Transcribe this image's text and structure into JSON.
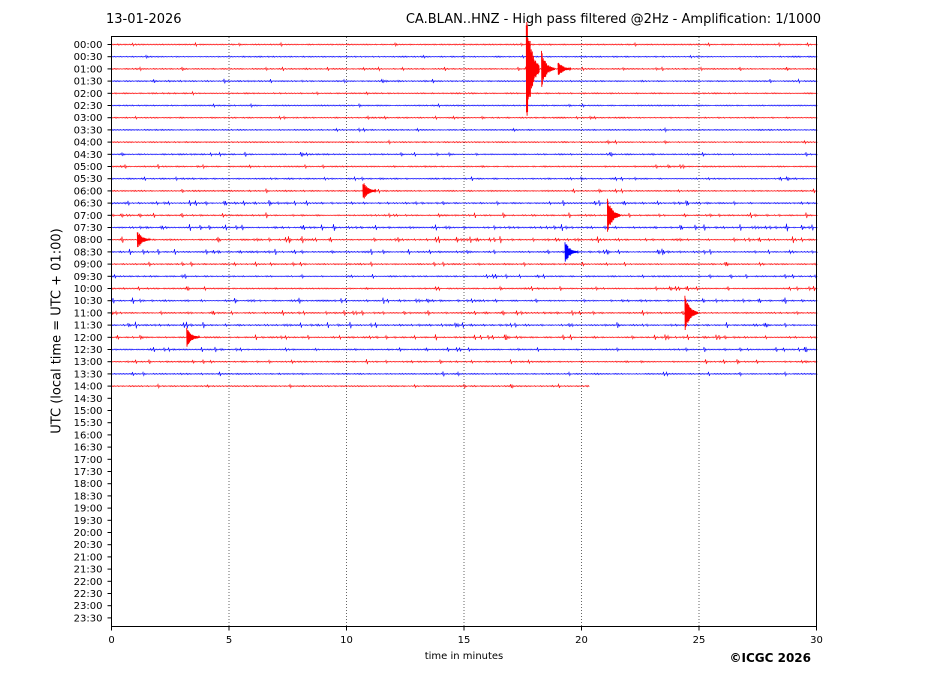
{
  "header": {
    "date": "13-01-2026",
    "title": "CA.BLAN..HNZ - High pass filtered @2Hz - Amplification: 1/1000"
  },
  "credit": "©ICGC 2026",
  "chart_data": {
    "type": "line",
    "ylabel": "UTC (local time = UTC + 01:00)",
    "xlabel": "time in minutes",
    "xlim": [
      0,
      30
    ],
    "x_ticks": [
      0,
      5,
      10,
      15,
      20,
      25,
      30
    ],
    "row_labels": [
      "00:00",
      "00:30",
      "01:00",
      "01:30",
      "02:00",
      "02:30",
      "03:00",
      "03:30",
      "04:00",
      "04:30",
      "05:00",
      "05:30",
      "06:00",
      "06:30",
      "07:00",
      "07:30",
      "08:00",
      "08:30",
      "09:00",
      "09:30",
      "10:00",
      "10:30",
      "11:00",
      "11:30",
      "12:00",
      "12:30",
      "13:00",
      "13:30",
      "14:00",
      "14:30",
      "15:00",
      "15:30",
      "16:00",
      "16:30",
      "17:00",
      "17:30",
      "18:00",
      "18:30",
      "19:00",
      "19:30",
      "20:00",
      "20:30",
      "21:00",
      "21:30",
      "22:00",
      "22:30",
      "23:00",
      "23:30"
    ],
    "colors": {
      "even_rows": "#ff0000",
      "odd_rows": "#0000ff"
    },
    "grid": "vertical dotted at 5-minute intervals",
    "series": [
      {
        "row": "00:00",
        "end_minute": 30,
        "activity": 0.15
      },
      {
        "row": "00:30",
        "end_minute": 30,
        "activity": 0.15
      },
      {
        "row": "01:00",
        "end_minute": 30,
        "activity": 0.25
      },
      {
        "row": "01:30",
        "end_minute": 30,
        "activity": 0.35
      },
      {
        "row": "02:00",
        "end_minute": 30,
        "activity": 0.15
      },
      {
        "row": "02:30",
        "end_minute": 30,
        "activity": 0.15
      },
      {
        "row": "03:00",
        "end_minute": 30,
        "activity": 0.15
      },
      {
        "row": "03:30",
        "end_minute": 30,
        "activity": 0.15
      },
      {
        "row": "04:00",
        "end_minute": 30,
        "activity": 0.1
      },
      {
        "row": "04:30",
        "end_minute": 30,
        "activity": 0.3
      },
      {
        "row": "05:00",
        "end_minute": 30,
        "activity": 0.3
      },
      {
        "row": "05:30",
        "end_minute": 30,
        "activity": 0.35
      },
      {
        "row": "06:00",
        "end_minute": 30,
        "activity": 0.3
      },
      {
        "row": "06:30",
        "end_minute": 30,
        "activity": 0.5
      },
      {
        "row": "07:00",
        "end_minute": 30,
        "activity": 0.5
      },
      {
        "row": "07:30",
        "end_minute": 30,
        "activity": 0.7
      },
      {
        "row": "08:00",
        "end_minute": 30,
        "activity": 0.7
      },
      {
        "row": "08:30",
        "end_minute": 30,
        "activity": 0.55
      },
      {
        "row": "09:00",
        "end_minute": 30,
        "activity": 0.35
      },
      {
        "row": "09:30",
        "end_minute": 30,
        "activity": 0.3
      },
      {
        "row": "10:00",
        "end_minute": 30,
        "activity": 0.35
      },
      {
        "row": "10:30",
        "end_minute": 30,
        "activity": 0.55
      },
      {
        "row": "11:00",
        "end_minute": 30,
        "activity": 0.5
      },
      {
        "row": "11:30",
        "end_minute": 30,
        "activity": 0.6
      },
      {
        "row": "12:00",
        "end_minute": 30,
        "activity": 0.5
      },
      {
        "row": "12:30",
        "end_minute": 30,
        "activity": 0.4
      },
      {
        "row": "13:00",
        "end_minute": 30,
        "activity": 0.4
      },
      {
        "row": "13:30",
        "end_minute": 30,
        "activity": 0.35
      },
      {
        "row": "14:00",
        "end_minute": 20.3,
        "activity": 0.3
      }
    ],
    "events": [
      {
        "row": "01:00",
        "minute": 17.65,
        "amplitude": 5.5
      },
      {
        "row": "01:00",
        "minute": 18.3,
        "amplitude": 1.5
      },
      {
        "row": "01:00",
        "minute": 19.0,
        "amplitude": 0.7
      },
      {
        "row": "06:00",
        "minute": 10.7,
        "amplitude": 0.8
      },
      {
        "row": "07:00",
        "minute": 21.1,
        "amplitude": 1.6
      },
      {
        "row": "08:00",
        "minute": 1.1,
        "amplitude": 0.8
      },
      {
        "row": "08:30",
        "minute": 19.3,
        "amplitude": 0.9
      },
      {
        "row": "11:00",
        "minute": 24.4,
        "amplitude": 1.6
      },
      {
        "row": "12:00",
        "minute": 3.2,
        "amplitude": 0.8
      }
    ]
  }
}
